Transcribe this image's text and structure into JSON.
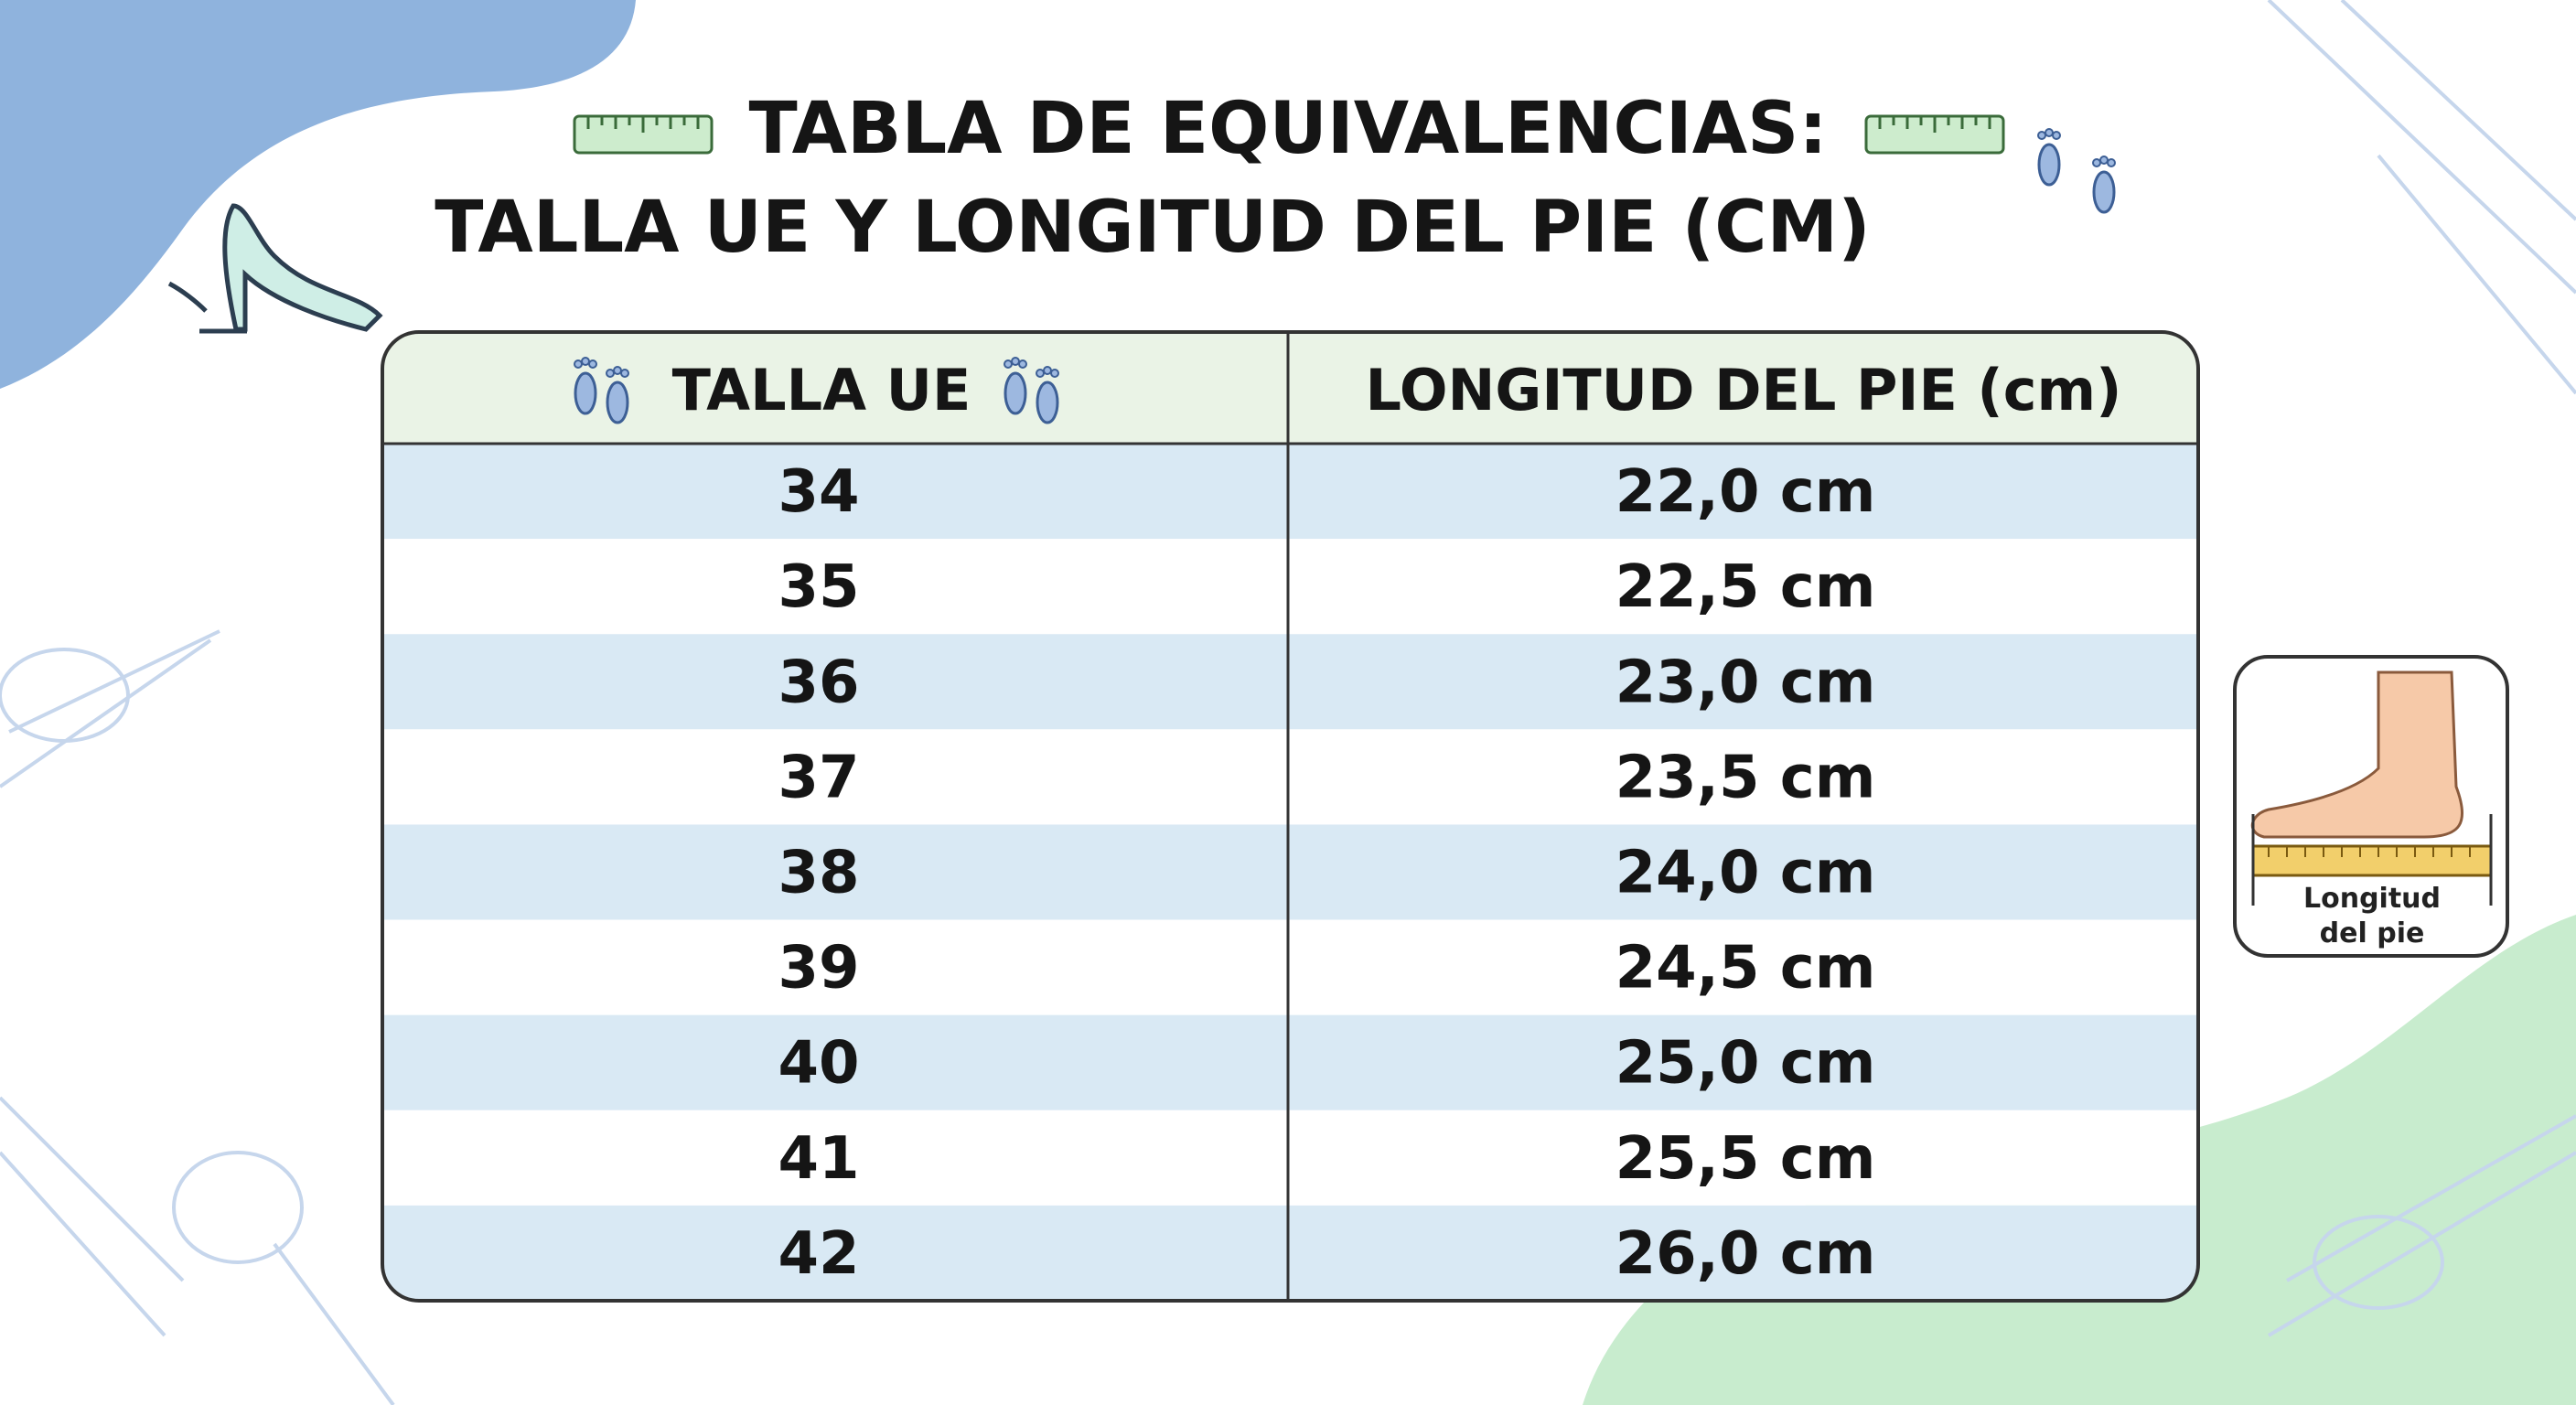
{
  "header": {
    "title_line1": "TABLA DE EQUIVALENCIAS:",
    "title_line2": "TALLA UE Y LONGITUD DEL PIE (CM)"
  },
  "table": {
    "columns": [
      "TALLA UE",
      "LONGITUD DEL PIE (cm)"
    ],
    "rows": [
      [
        "34",
        "22,0 cm"
      ],
      [
        "35",
        "22,5 cm"
      ],
      [
        "36",
        "23,0 cm"
      ],
      [
        "37",
        "23,5 cm"
      ],
      [
        "38",
        "24,0 cm"
      ],
      [
        "39",
        "24,5 cm"
      ],
      [
        "40",
        "25,0 cm"
      ],
      [
        "41",
        "25,5 cm"
      ],
      [
        "42",
        "26,0 cm"
      ]
    ]
  },
  "illustration": {
    "caption_line1": "Longitud",
    "caption_line2": "del pie"
  }
}
